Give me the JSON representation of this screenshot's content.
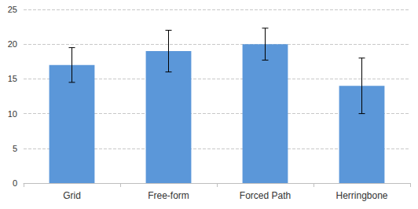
{
  "chart_data": {
    "type": "bar",
    "categories": [
      "Grid",
      "Free-form",
      "Forced Path",
      "Herringbone"
    ],
    "values": [
      17,
      19,
      20,
      14
    ],
    "errors": [
      2.5,
      3,
      2.3,
      4
    ],
    "color": "#5b97d9",
    "ylim": [
      0,
      25
    ],
    "yticks": [
      0,
      5,
      10,
      15,
      20,
      25
    ],
    "grid": true
  }
}
